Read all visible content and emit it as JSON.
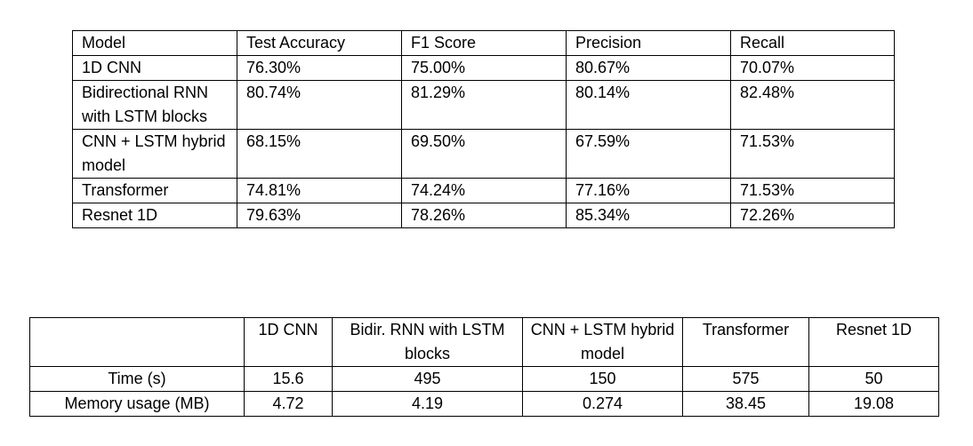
{
  "table1": {
    "headers": [
      "Model",
      "Test Accuracy",
      "F1 Score",
      "Precision",
      "Recall"
    ],
    "rows": [
      [
        "1D CNN",
        "76.30%",
        "75.00%",
        "80.67%",
        "70.07%"
      ],
      [
        "Bidirectional RNN with LSTM blocks",
        "80.74%",
        "81.29%",
        "80.14%",
        "82.48%"
      ],
      [
        "CNN + LSTM hybrid model",
        "68.15%",
        "69.50%",
        "67.59%",
        "71.53%"
      ],
      [
        "Transformer",
        "74.81%",
        "74.24%",
        "77.16%",
        "71.53%"
      ],
      [
        "Resnet 1D",
        "79.63%",
        "78.26%",
        "85.34%",
        "72.26%"
      ]
    ]
  },
  "table2": {
    "headers": [
      "",
      "1D CNN",
      "Bidir. RNN with LSTM blocks",
      "CNN + LSTM hybrid model",
      "Transformer",
      "Resnet 1D"
    ],
    "rows": [
      [
        "Time (s)",
        "15.6",
        "495",
        "150",
        "575",
        "50"
      ],
      [
        "Memory usage (MB)",
        "4.72",
        "4.19",
        "0.274",
        "38.45",
        "19.08"
      ]
    ]
  }
}
